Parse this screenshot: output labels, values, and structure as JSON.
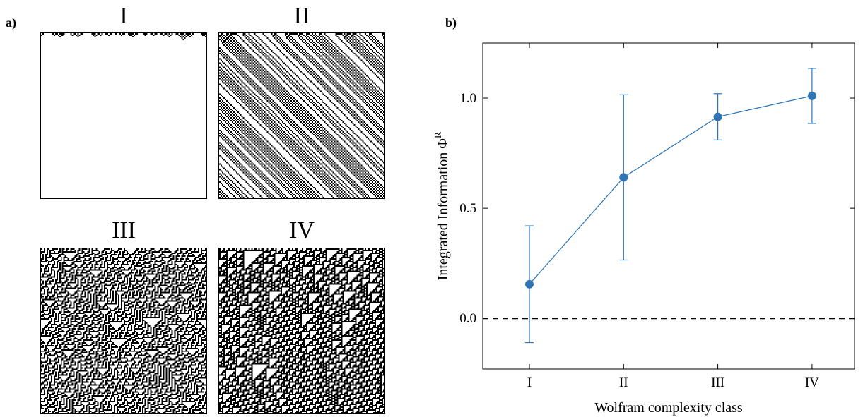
{
  "panel_a": {
    "label": "a)",
    "automata": [
      {
        "title": "I",
        "pattern": "class1"
      },
      {
        "title": "II",
        "pattern": "class2"
      },
      {
        "title": "III",
        "pattern": "class3"
      },
      {
        "title": "IV",
        "pattern": "class4"
      }
    ]
  },
  "panel_b": {
    "label": "b)"
  },
  "chart_data": {
    "type": "line",
    "xlabel": "Wolfram complexity class",
    "ylabel": "Integrated Information Φ",
    "ylabel_superscript": "R",
    "categories": [
      "I",
      "II",
      "III",
      "IV"
    ],
    "series": [
      {
        "values": [
          0.155,
          0.64,
          0.915,
          1.01
        ],
        "error_low": [
          -0.11,
          0.265,
          0.81,
          0.885
        ],
        "error_high": [
          0.42,
          1.015,
          1.02,
          1.135
        ]
      }
    ],
    "yticks": [
      "0.0",
      "0.5",
      "1.0"
    ],
    "ytick_values": [
      0.0,
      0.5,
      1.0
    ],
    "ylim": [
      -0.23,
      1.25
    ],
    "reference_line": {
      "y": 0.0,
      "style": "dashed"
    },
    "grid": false,
    "colors": {
      "series": "#2f75b5",
      "reference": "#000000"
    }
  }
}
